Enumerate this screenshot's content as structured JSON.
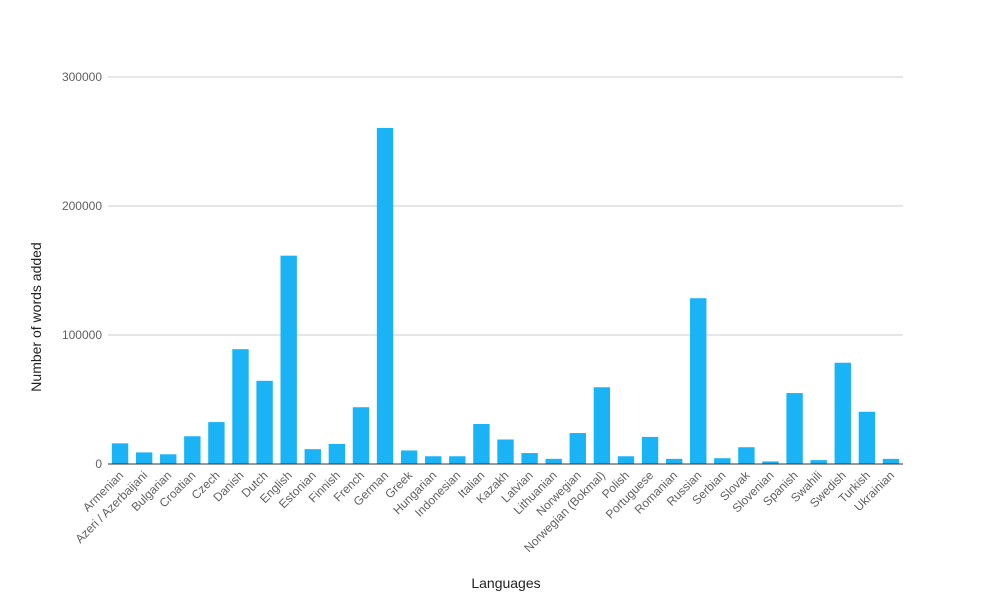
{
  "chart_data": {
    "type": "bar",
    "title": "",
    "xlabel": "Languages",
    "ylabel": "Number of words added",
    "ylim": [
      0,
      300000
    ],
    "yticks": [
      0,
      100000,
      200000,
      300000
    ],
    "grid": true,
    "bar_color": "#1ab3f5",
    "categories": [
      "Armenian",
      "Azeri / Azerbaijani",
      "Bulgarian",
      "Croatian",
      "Czech",
      "Danish",
      "Dutch",
      "English",
      "Estonian",
      "Finnish",
      "French",
      "German",
      "Greek",
      "Hungarian",
      "Indonesian",
      "Italian",
      "Kazakh",
      "Latvian",
      "Lithuanian",
      "Norwegian",
      "Norwegian (Bokmal)",
      "Polish",
      "Portuguese",
      "Romanian",
      "Russian",
      "Serbian",
      "Slovak",
      "Slovenian",
      "Spanish",
      "Swahili",
      "Swedish",
      "Turkish",
      "Ukrainian"
    ],
    "values": [
      16000,
      9000,
      7500,
      21500,
      32500,
      89000,
      64500,
      161500,
      11500,
      15500,
      44000,
      260500,
      10500,
      6000,
      6000,
      31000,
      19000,
      8500,
      4000,
      24000,
      59500,
      6000,
      21000,
      4000,
      128500,
      4500,
      13000,
      2000,
      55000,
      3000,
      78500,
      40500,
      4000
    ]
  }
}
